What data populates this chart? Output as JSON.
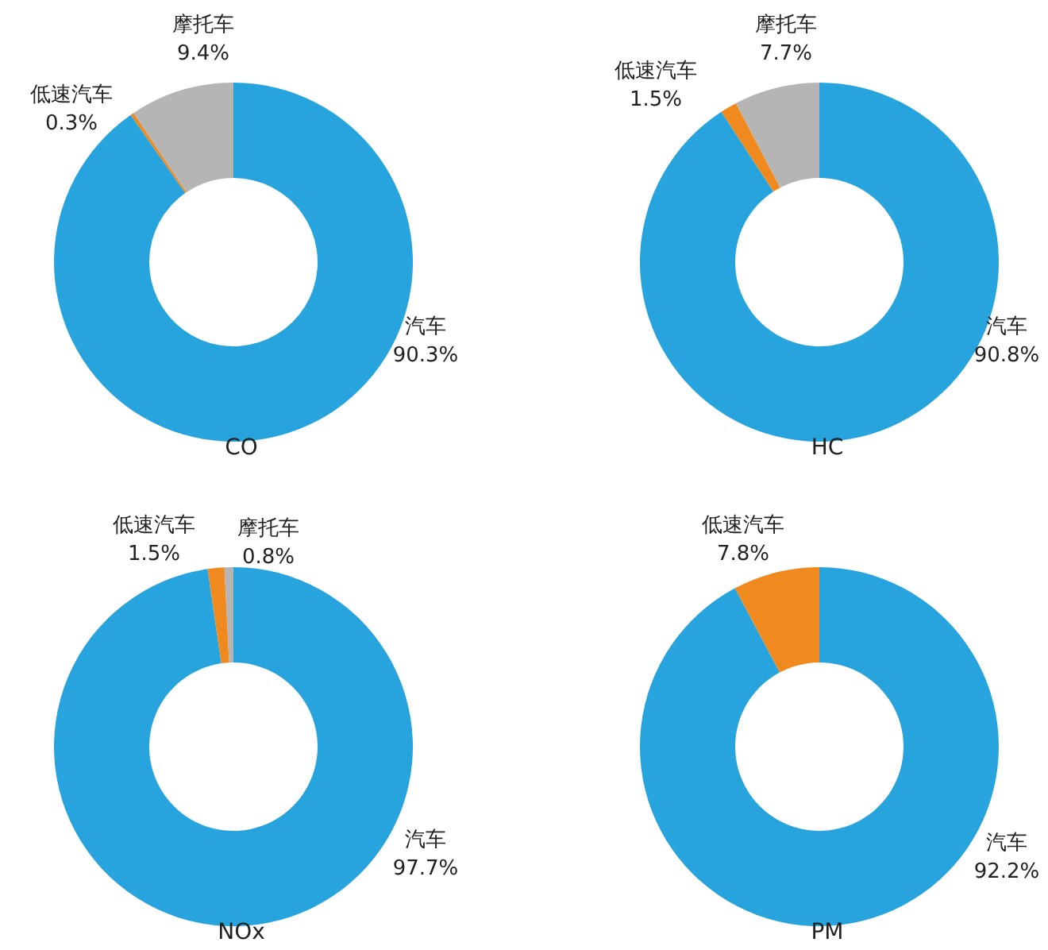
{
  "chart_data": [
    {
      "type": "donut",
      "title": "CO",
      "categories": [
        "汽车",
        "低速汽车",
        "摩托车"
      ],
      "values": [
        90.3,
        0.3,
        9.4
      ],
      "value_labels": [
        "90.3%",
        "0.3%",
        "9.4%"
      ],
      "colors": [
        "#27a3dd",
        "#f08a1e",
        "#b5b5b5"
      ]
    },
    {
      "type": "donut",
      "title": "HC",
      "categories": [
        "汽车",
        "低速汽车",
        "摩托车"
      ],
      "values": [
        90.8,
        1.5,
        7.7
      ],
      "value_labels": [
        "90.8%",
        "1.5%",
        "7.7%"
      ],
      "colors": [
        "#27a3dd",
        "#f08a1e",
        "#b5b5b5"
      ]
    },
    {
      "type": "donut",
      "title": "NOx",
      "categories": [
        "汽车",
        "低速汽车",
        "摩托车"
      ],
      "values": [
        97.7,
        1.5,
        0.8
      ],
      "value_labels": [
        "97.7%",
        "1.5%",
        "0.8%"
      ],
      "colors": [
        "#27a3dd",
        "#f08a1e",
        "#b5b5b5"
      ]
    },
    {
      "type": "donut",
      "title": "PM",
      "categories": [
        "汽车",
        "低速汽车"
      ],
      "values": [
        92.2,
        7.8
      ],
      "value_labels": [
        "92.2%",
        "7.8%"
      ],
      "colors": [
        "#27a3dd",
        "#f08a1e"
      ]
    }
  ]
}
